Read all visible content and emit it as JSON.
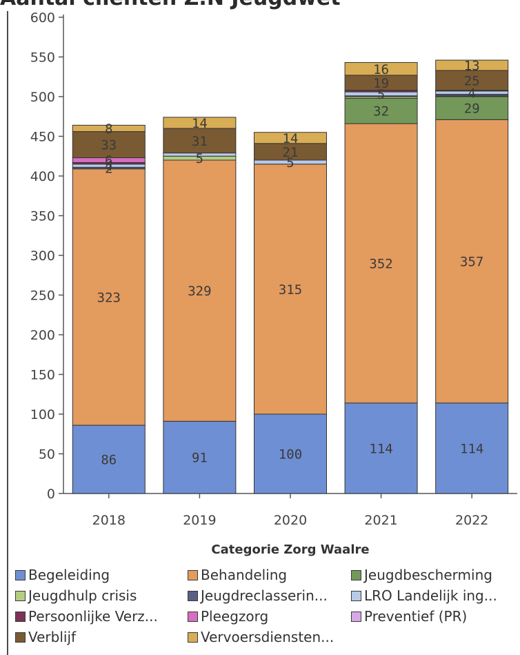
{
  "chart_data": {
    "type": "bar",
    "stacked": true,
    "title": "Aantal cliënten Z.N Jeugdwet",
    "xlabel": "Categorie Zorg Waalre",
    "ylabel": "",
    "ylim": [
      0,
      600
    ],
    "yticks": [
      0,
      50,
      100,
      150,
      200,
      250,
      300,
      350,
      400,
      450,
      500,
      550,
      600
    ],
    "categories": [
      "2018",
      "2019",
      "2020",
      "2021",
      "2022"
    ],
    "grid": false,
    "legend_position": "bottom",
    "series": [
      {
        "name": "Begeleiding",
        "color": "#6f8fd4",
        "values": [
          86,
          91,
          100,
          114,
          114
        ],
        "labels": [
          "86",
          "91",
          "100",
          "114",
          "114"
        ]
      },
      {
        "name": "Behandeling",
        "color": "#e39b5e",
        "values": [
          323,
          329,
          315,
          352,
          357
        ],
        "labels": [
          "323",
          "329",
          "315",
          "352",
          "357"
        ]
      },
      {
        "name": "Jeugdbescherming",
        "color": "#73985a",
        "values": [
          0,
          0,
          0,
          32,
          29
        ],
        "labels": [
          "",
          "",
          "",
          "32",
          "29"
        ]
      },
      {
        "name": "Jeugdhulp crisis",
        "color": "#b5cc84",
        "values": [
          0,
          5,
          0,
          2,
          1
        ],
        "labels": [
          "",
          "5",
          "",
          "",
          ""
        ]
      },
      {
        "name": "Jeugdreclasserin...",
        "color": "#5a5f85",
        "values": [
          2,
          0,
          0,
          1,
          2
        ],
        "labels": [
          "2",
          "",
          "",
          "",
          ""
        ]
      },
      {
        "name": "LRO Landelijk ing...",
        "color": "#b8cae8",
        "values": [
          4,
          4,
          5,
          5,
          4
        ],
        "labels": [
          "4",
          "",
          "5",
          "5",
          "4"
        ]
      },
      {
        "name": "Persoonlijke Verz...",
        "color": "#7c3355",
        "values": [
          2,
          0,
          0,
          2,
          1
        ],
        "labels": [
          "",
          "",
          "",
          "",
          ""
        ]
      },
      {
        "name": "Pleegzorg",
        "color": "#d66fc0",
        "values": [
          6,
          0,
          0,
          0,
          0
        ],
        "labels": [
          "6",
          "",
          "",
          "",
          ""
        ]
      },
      {
        "name": "Preventief (PR)",
        "color": "#d7a8e6",
        "values": [
          0,
          0,
          0,
          0,
          0
        ],
        "labels": [
          "",
          "",
          "",
          "",
          ""
        ]
      },
      {
        "name": "Verblijf",
        "color": "#7a5a33",
        "values": [
          33,
          31,
          21,
          19,
          25
        ],
        "labels": [
          "33",
          "31",
          "21",
          "19",
          "25"
        ]
      },
      {
        "name": "Vervoersdiensten...",
        "color": "#d9ad55",
        "values": [
          8,
          14,
          14,
          16,
          13
        ],
        "labels": [
          "8",
          "14",
          "14",
          "16",
          "13"
        ]
      }
    ]
  }
}
